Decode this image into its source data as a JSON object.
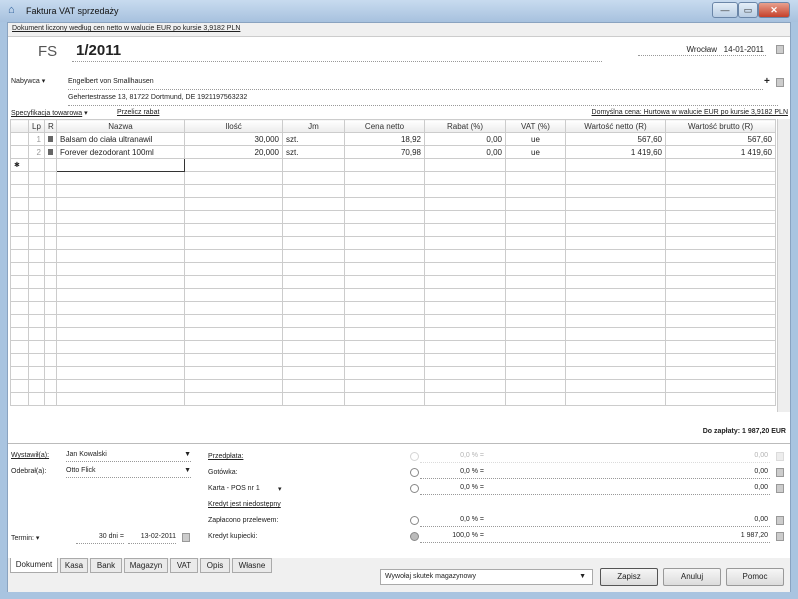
{
  "window": {
    "title": "Faktura VAT sprzedaży",
    "minimize": "—",
    "maximize": "▭",
    "close": "✕"
  },
  "info_bar": "Dokument liczony według cen netto w walucie EUR po kursie 3,9182 PLN",
  "doc": {
    "type": "FS",
    "number": "1/2011",
    "place": "Wrocław",
    "date": "14-01-2011"
  },
  "buyer": {
    "label": "Nabywca",
    "name": "Engelbert von Smallhausen",
    "address": "Gehertestrasse 13, 81722 Dortmund, DE 1921197563232",
    "add": "+"
  },
  "spec": {
    "label": "Specyfikacja towarowa",
    "recalc": "Przelicz rabat",
    "default_price": "Domyślna cena: Hurtowa w walucie EUR po kursie 3,9182 PLN"
  },
  "table": {
    "columns": [
      "",
      "Lp",
      "R",
      "Nazwa",
      "Ilość",
      "Jm",
      "Cena netto",
      "Rabat (%)",
      "VAT (%)",
      "Wartość netto (R)",
      "Wartość brutto (R)"
    ],
    "rows": [
      {
        "lp": "1",
        "name": "Balsam do ciała ultranawil",
        "qty": "30,000",
        "unit": "szt.",
        "price": "18,92",
        "discount": "0,00",
        "vat": "ue",
        "net": "567,60",
        "gross": "567,60"
      },
      {
        "lp": "2",
        "name": "Forever dezodorant 100ml",
        "qty": "20,000",
        "unit": "szt.",
        "price": "70,98",
        "discount": "0,00",
        "vat": "ue",
        "net": "1 419,60",
        "gross": "1 419,60"
      }
    ],
    "new_row_marker": "✱"
  },
  "total": "Do zapłaty: 1 987,20 EUR",
  "issued_by": {
    "label": "Wystawił(a):",
    "value": "Jan Kowalski"
  },
  "received_by": {
    "label": "Odebrał(a):",
    "value": "Otto Flick"
  },
  "term": {
    "label": "Termin:",
    "days": "30 dni =",
    "date": "13-02-2011"
  },
  "payments": [
    {
      "label": "Przedpłata:",
      "pct": "0,0 % =",
      "amount": "0,00",
      "link": true,
      "disabled": true
    },
    {
      "label": "Gotówka:",
      "pct": "0,0 % =",
      "amount": "0,00"
    },
    {
      "label": "Karta - POS nr 1",
      "pct": "0,0 % =",
      "amount": "0,00"
    },
    {
      "label": "Kredyt jest niedostępny",
      "link": true
    },
    {
      "label": "Zapłacono przelewem:",
      "pct": "0,0 % =",
      "amount": "0,00"
    },
    {
      "label": "Kredyt kupiecki:",
      "pct": "100,0 % =",
      "amount": "1 987,20",
      "selected": true
    }
  ],
  "tabs": [
    "Dokument",
    "Kasa",
    "Bank",
    "Magazyn",
    "VAT",
    "Opis",
    "Własne"
  ],
  "active_tab": "Dokument",
  "warehouse_select": "Wywołaj skutek magazynowy",
  "buttons": {
    "save": "Zapisz",
    "cancel": "Anuluj",
    "help": "Pomoc"
  }
}
